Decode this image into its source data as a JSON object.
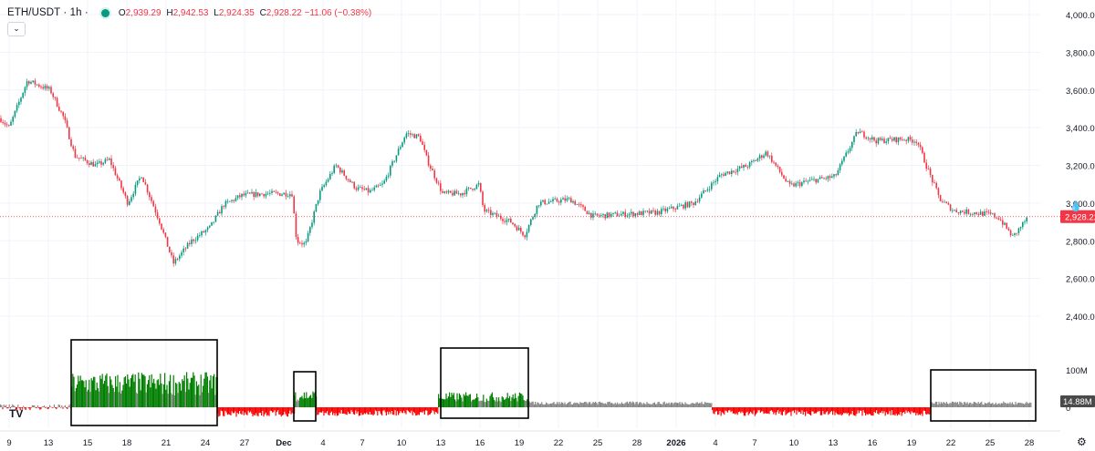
{
  "header": {
    "symbol": "ETH/USDT · 1h ·",
    "ohlc": [
      {
        "k": "O",
        "v": "2,939.29"
      },
      {
        "k": "H",
        "v": "2,942.53"
      },
      {
        "k": "L",
        "v": "2,924.35"
      },
      {
        "k": "C",
        "v": "2,928.22 −11.06 (−0.38%)"
      }
    ]
  },
  "colors": {
    "up": "#089981",
    "down": "#f23645",
    "vol_up": "#007f00",
    "vol_down": "#ff0000",
    "vol_neutral": "#888888",
    "grid": "#f0f3fa"
  },
  "chart_data": [
    {
      "type": "candlestick",
      "y_ticks": [
        "4,000.00",
        "3,800.00",
        "3,600.00",
        "3,400.00",
        "3,200.00",
        "3,000.00",
        "2,800.00",
        "2,600.00",
        "2,400.00"
      ],
      "ylim": [
        2400,
        4000
      ],
      "last_price_label": "2,928.22",
      "x_ticks": [
        "9",
        "13",
        "15",
        "18",
        "21",
        "24",
        "27",
        "Dec",
        "4",
        "7",
        "10",
        "13",
        "16",
        "19",
        "22",
        "25",
        "28",
        "2026",
        "4",
        "7",
        "10",
        "13",
        "16",
        "19",
        "22",
        "25",
        "28"
      ],
      "close_path": [
        {
          "x": 0,
          "y": 3450
        },
        {
          "x": 10,
          "y": 3400
        },
        {
          "x": 30,
          "y": 3650
        },
        {
          "x": 55,
          "y": 3600
        },
        {
          "x": 70,
          "y": 3450
        },
        {
          "x": 82,
          "y": 3250
        },
        {
          "x": 105,
          "y": 3200
        },
        {
          "x": 120,
          "y": 3230
        },
        {
          "x": 140,
          "y": 3000
        },
        {
          "x": 155,
          "y": 3150
        },
        {
          "x": 175,
          "y": 2900
        },
        {
          "x": 190,
          "y": 2680
        },
        {
          "x": 210,
          "y": 2800
        },
        {
          "x": 230,
          "y": 2870
        },
        {
          "x": 245,
          "y": 2990
        },
        {
          "x": 265,
          "y": 3040
        },
        {
          "x": 290,
          "y": 3050
        },
        {
          "x": 320,
          "y": 3050
        },
        {
          "x": 325,
          "y": 2800
        },
        {
          "x": 335,
          "y": 2780
        },
        {
          "x": 350,
          "y": 3050
        },
        {
          "x": 368,
          "y": 3200
        },
        {
          "x": 390,
          "y": 3080
        },
        {
          "x": 405,
          "y": 3060
        },
        {
          "x": 420,
          "y": 3100
        },
        {
          "x": 445,
          "y": 3370
        },
        {
          "x": 460,
          "y": 3350
        },
        {
          "x": 468,
          "y": 3230
        },
        {
          "x": 485,
          "y": 3050
        },
        {
          "x": 505,
          "y": 3050
        },
        {
          "x": 525,
          "y": 3100
        },
        {
          "x": 530,
          "y": 2960
        },
        {
          "x": 560,
          "y": 2900
        },
        {
          "x": 575,
          "y": 2830
        },
        {
          "x": 590,
          "y": 3000
        },
        {
          "x": 625,
          "y": 3020
        },
        {
          "x": 650,
          "y": 2930
        },
        {
          "x": 680,
          "y": 2940
        },
        {
          "x": 720,
          "y": 2950
        },
        {
          "x": 760,
          "y": 3000
        },
        {
          "x": 790,
          "y": 3150
        },
        {
          "x": 820,
          "y": 3200
        },
        {
          "x": 840,
          "y": 3270
        },
        {
          "x": 865,
          "y": 3090
        },
        {
          "x": 890,
          "y": 3120
        },
        {
          "x": 915,
          "y": 3140
        },
        {
          "x": 940,
          "y": 3380
        },
        {
          "x": 960,
          "y": 3330
        },
        {
          "x": 990,
          "y": 3340
        },
        {
          "x": 1005,
          "y": 3330
        },
        {
          "x": 1015,
          "y": 3200
        },
        {
          "x": 1030,
          "y": 3020
        },
        {
          "x": 1045,
          "y": 2960
        },
        {
          "x": 1065,
          "y": 2950
        },
        {
          "x": 1085,
          "y": 2940
        },
        {
          "x": 1095,
          "y": 2920
        },
        {
          "x": 1110,
          "y": 2820
        },
        {
          "x": 1127,
          "y": 2928
        }
      ]
    },
    {
      "type": "bar",
      "name": "volume",
      "y_ticks": [
        "100M",
        "0"
      ],
      "last_value_label": "14.88M",
      "regions": [
        {
          "from": 0,
          "to": 78,
          "sign": "mixed",
          "level": 8
        },
        {
          "from": 78,
          "to": 238,
          "sign": "up",
          "level": 70
        },
        {
          "from": 238,
          "to": 322,
          "sign": "down",
          "level": -20
        },
        {
          "from": 322,
          "to": 346,
          "sign": "up",
          "level": 35
        },
        {
          "from": 346,
          "to": 480,
          "sign": "down",
          "level": -18
        },
        {
          "from": 480,
          "to": 580,
          "sign": "up",
          "level": 30
        },
        {
          "from": 580,
          "to": 780,
          "sign": "neutral",
          "level": 12
        },
        {
          "from": 780,
          "to": 1020,
          "sign": "down",
          "level": -18
        },
        {
          "from": 1020,
          "to": 1130,
          "sign": "neutral",
          "level": 12
        }
      ],
      "highlight_boxes": [
        {
          "from": 78,
          "to": 238
        },
        {
          "from": 322,
          "to": 346
        },
        {
          "from": 483,
          "to": 579
        },
        {
          "from": 1020,
          "to": 1135
        }
      ]
    }
  ]
}
